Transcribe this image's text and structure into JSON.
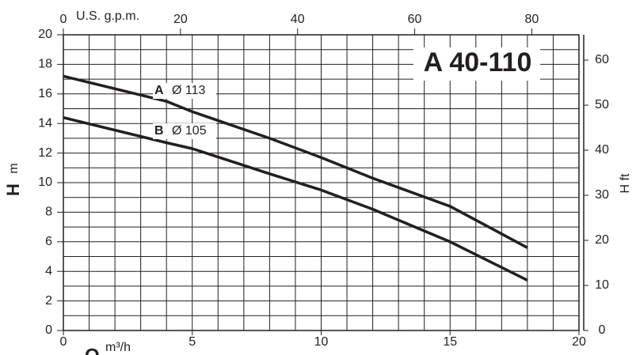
{
  "chart_data": {
    "type": "line",
    "title": "A 40-110",
    "xlabel": "Q",
    "xunit": "m³/h",
    "ylabel": "H",
    "yunit": "m",
    "y2label": "H ft",
    "x2label": "U.S. g.p.m.",
    "x": [
      0,
      4,
      5,
      8,
      10,
      12,
      15,
      18
    ],
    "series": [
      {
        "name": "A",
        "diameter": "Ø 113",
        "color": "#231f20",
        "values": [
          17.2,
          15.5,
          14.8,
          13.0,
          11.7,
          10.3,
          8.4,
          5.6
        ]
      },
      {
        "name": "B",
        "diameter": "Ø 105",
        "color": "#231f20",
        "values": [
          14.4,
          12.7,
          12.3,
          10.6,
          9.5,
          8.2,
          6.0,
          3.4
        ]
      }
    ],
    "xlim": [
      0,
      20
    ],
    "xticks": [
      0,
      5,
      10,
      15,
      20
    ],
    "ylim": [
      0,
      20
    ],
    "yticks": [
      0,
      2,
      4,
      6,
      8,
      10,
      12,
      14,
      16,
      18,
      20
    ],
    "x2lim": [
      0,
      88.06
    ],
    "x2ticks": [
      0,
      20,
      40,
      60,
      80
    ],
    "y2lim": [
      0,
      65.62
    ],
    "y2ticks": [
      0,
      10,
      20,
      30,
      40,
      50,
      60
    ],
    "xminorticks": [
      0,
      1,
      2,
      3,
      4,
      5,
      6,
      7,
      8,
      9,
      10,
      11,
      12,
      13,
      14,
      15,
      16,
      17,
      18,
      19,
      20
    ],
    "yminorticks": [
      0,
      1,
      2,
      3,
      4,
      5,
      6,
      7,
      8,
      9,
      10,
      11,
      12,
      13,
      14,
      15,
      16,
      17,
      18,
      19,
      20
    ],
    "grid": true
  }
}
